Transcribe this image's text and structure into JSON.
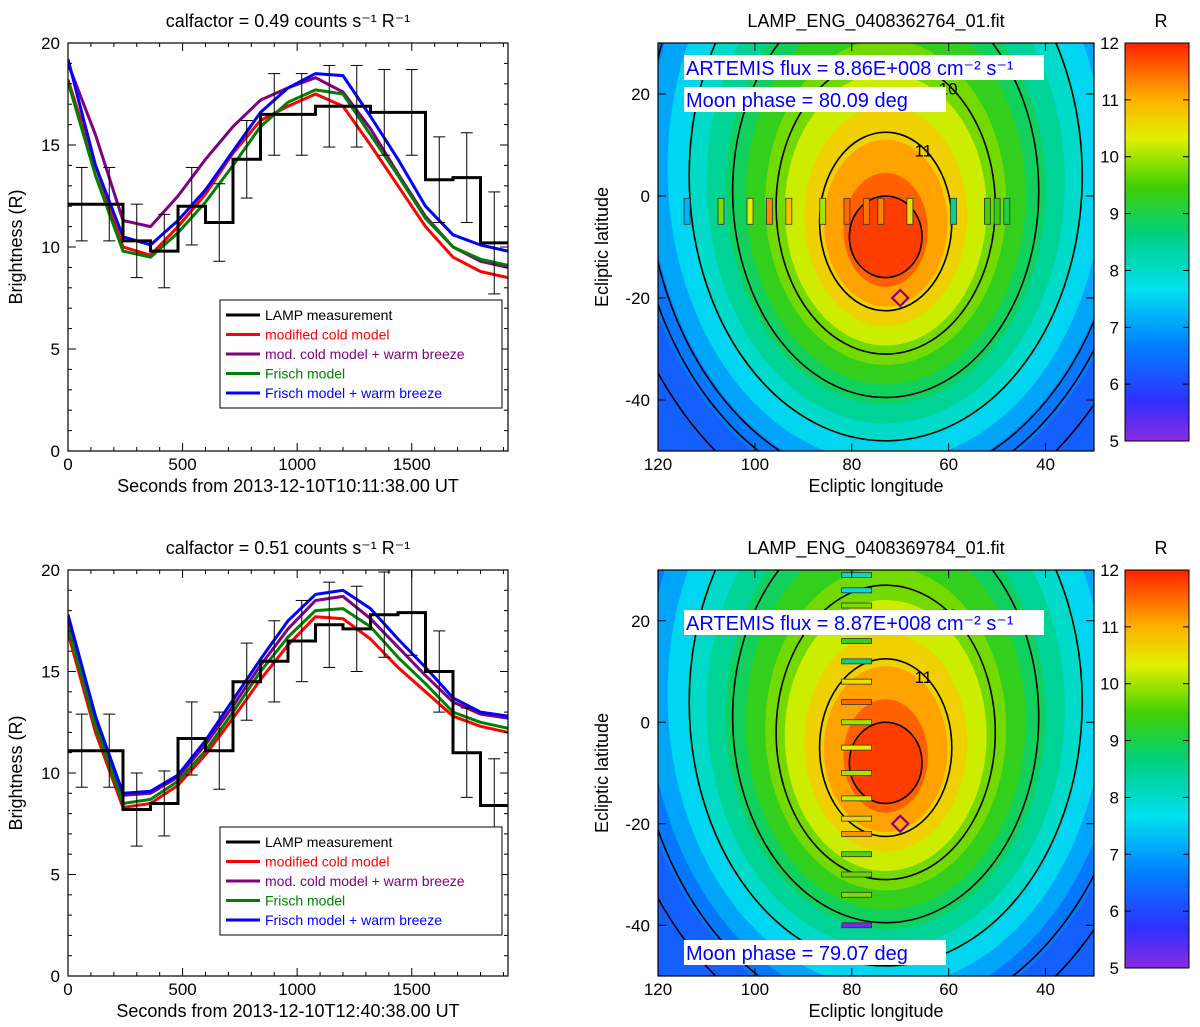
{
  "legend_labels": [
    "LAMP measurement",
    "modified cold model",
    "mod. cold model + warm breeze",
    "Frisch model",
    "Frisch model + warm breeze"
  ],
  "colors": {
    "LAMP measurement": "#000000",
    "modified cold model": "#ff0000",
    "mod. cold model + warm breeze": "#800080",
    "Frisch model": "#008000",
    "Frisch model + warm breeze": "#0000ff"
  },
  "chart_data": [
    {
      "type": "line",
      "panel": "top-left",
      "title": "calfactor = 0.49 counts s⁻¹ R⁻¹",
      "xlabel": "Seconds from 2013-12-10T10:11:38.00 UT",
      "ylabel": "Brightness (R)",
      "xlim": [
        0,
        1920
      ],
      "ylim": [
        0,
        20
      ],
      "xticks": [
        0,
        500,
        1000,
        1500
      ],
      "yticks": [
        0,
        5,
        10,
        15,
        20
      ],
      "legend_position": "lower-right",
      "measurement": {
        "name": "LAMP measurement",
        "edges": [
          0,
          120,
          240,
          360,
          480,
          600,
          720,
          840,
          960,
          1080,
          1200,
          1320,
          1440,
          1560,
          1680,
          1800,
          1920
        ],
        "values": [
          12.1,
          12.1,
          10.3,
          9.8,
          12.0,
          11.2,
          14.3,
          16.5,
          16.5,
          16.9,
          16.9,
          16.6,
          16.6,
          13.3,
          13.4,
          10.2
        ],
        "errors": [
          1.8,
          1.8,
          1.8,
          1.8,
          1.9,
          1.9,
          1.9,
          2.0,
          2.0,
          2.0,
          2.0,
          2.1,
          2.1,
          2.1,
          2.2,
          2.5
        ]
      },
      "x": [
        0,
        120,
        240,
        360,
        480,
        600,
        720,
        840,
        960,
        1080,
        1200,
        1320,
        1440,
        1560,
        1680,
        1800,
        1920
      ],
      "series": [
        {
          "name": "modified cold model",
          "values": [
            18.2,
            14.0,
            10.0,
            9.6,
            11.0,
            12.6,
            14.6,
            16.2,
            16.9,
            17.5,
            16.9,
            15.0,
            13.0,
            11.0,
            9.5,
            8.8,
            8.5
          ]
        },
        {
          "name": "mod. cold model + warm breeze",
          "values": [
            19.0,
            15.5,
            11.3,
            11.0,
            12.5,
            14.3,
            15.9,
            17.2,
            17.8,
            18.3,
            17.6,
            15.8,
            13.6,
            11.5,
            10.0,
            9.3,
            9.0
          ]
        },
        {
          "name": "Frisch model",
          "values": [
            18.1,
            13.5,
            9.8,
            9.5,
            10.7,
            12.2,
            14.0,
            15.9,
            17.1,
            17.7,
            17.5,
            15.5,
            13.5,
            11.4,
            10.0,
            9.4,
            9.1
          ]
        },
        {
          "name": "Frisch model + warm breeze",
          "values": [
            19.2,
            14.0,
            10.5,
            10.1,
            11.3,
            12.8,
            14.7,
            16.6,
            17.8,
            18.5,
            18.4,
            16.4,
            14.3,
            12.0,
            10.6,
            10.1,
            9.8
          ]
        }
      ]
    },
    {
      "type": "line",
      "panel": "bottom-left",
      "title": "calfactor = 0.51 counts s⁻¹ R⁻¹",
      "xlabel": "Seconds from 2013-12-10T12:40:38.00 UT",
      "ylabel": "Brightness (R)",
      "xlim": [
        0,
        1920
      ],
      "ylim": [
        0,
        20
      ],
      "xticks": [
        0,
        500,
        1000,
        1500
      ],
      "yticks": [
        0,
        5,
        10,
        15,
        20
      ],
      "legend_position": "lower-right",
      "measurement": {
        "name": "LAMP measurement",
        "edges": [
          0,
          120,
          240,
          360,
          480,
          600,
          720,
          840,
          960,
          1080,
          1200,
          1320,
          1440,
          1560,
          1680,
          1800,
          1920
        ],
        "values": [
          11.1,
          11.1,
          8.2,
          8.5,
          11.7,
          11.1,
          14.5,
          15.5,
          16.5,
          17.3,
          17.1,
          17.8,
          17.9,
          15.0,
          11.0,
          8.4
        ],
        "errors": [
          1.8,
          1.8,
          1.8,
          1.6,
          1.8,
          1.9,
          1.9,
          2.0,
          2.0,
          2.1,
          2.1,
          2.1,
          2.1,
          2.0,
          2.2,
          2.3
        ]
      },
      "x": [
        0,
        120,
        240,
        360,
        480,
        600,
        720,
        840,
        960,
        1080,
        1200,
        1320,
        1440,
        1560,
        1680,
        1800,
        1920
      ],
      "series": [
        {
          "name": "modified cold model",
          "values": [
            16.9,
            12.0,
            8.3,
            8.5,
            9.4,
            10.9,
            12.7,
            14.6,
            16.3,
            17.7,
            17.6,
            16.6,
            15.2,
            14.0,
            12.8,
            12.3,
            12.0
          ]
        },
        {
          "name": "mod. cold model + warm breeze",
          "values": [
            17.5,
            12.5,
            8.9,
            9.0,
            9.8,
            11.4,
            13.3,
            15.3,
            17.1,
            18.5,
            18.7,
            17.6,
            16.2,
            14.8,
            13.5,
            12.9,
            12.7
          ]
        },
        {
          "name": "Frisch model",
          "values": [
            17.2,
            12.3,
            8.5,
            8.7,
            9.6,
            11.1,
            13.0,
            15.0,
            16.7,
            18.0,
            18.1,
            17.2,
            15.7,
            14.4,
            13.0,
            12.5,
            12.2
          ]
        },
        {
          "name": "Frisch model + warm breeze",
          "values": [
            17.8,
            12.8,
            9.0,
            9.1,
            9.9,
            11.6,
            13.6,
            15.6,
            17.5,
            18.8,
            19.0,
            18.1,
            16.6,
            15.2,
            13.7,
            13.0,
            12.8
          ]
        }
      ]
    },
    {
      "type": "heatmap",
      "panel": "top-right",
      "title": "LAMP_ENG_0408362764_01.fit",
      "xlabel": "Ecliptic longitude",
      "ylabel": "Ecliptic latitude",
      "xlim": [
        120,
        30
      ],
      "ylim": [
        -50,
        30
      ],
      "xticks": [
        120,
        100,
        80,
        60,
        40
      ],
      "yticks": [
        20,
        0,
        -20,
        -40
      ],
      "peak": [
        73,
        -8
      ],
      "contour_levels": [
        7,
        8,
        9,
        10,
        11
      ],
      "moon_position": [
        70,
        -20
      ],
      "annotations": [
        "ARTEMIS flux =  8.86E+008 cm⁻² s⁻¹",
        "Moon phase =  80.09 deg"
      ],
      "colorbar": {
        "label": "R",
        "min": 5,
        "max": 12,
        "ticks": [
          5,
          6,
          7,
          8,
          9,
          10,
          11,
          12
        ]
      },
      "pointings": [
        {
          "lon": 114,
          "lat": -3,
          "value": 7.2
        },
        {
          "lon": 107,
          "lat": -3,
          "value": 9.8
        },
        {
          "lon": 101,
          "lat": -3,
          "value": 10.3
        },
        {
          "lon": 97,
          "lat": -3,
          "value": 11.3
        },
        {
          "lon": 93,
          "lat": -3,
          "value": 10.8
        },
        {
          "lon": 86,
          "lat": -3,
          "value": 10.0
        },
        {
          "lon": 81,
          "lat": -3,
          "value": 11.5
        },
        {
          "lon": 77,
          "lat": -3,
          "value": 11.4
        },
        {
          "lon": 74,
          "lat": -3,
          "value": 11.3
        },
        {
          "lon": 68,
          "lat": -3,
          "value": 10.5
        },
        {
          "lon": 59,
          "lat": -3,
          "value": 8.5
        },
        {
          "lon": 52,
          "lat": -3,
          "value": 9.5
        },
        {
          "lon": 50,
          "lat": -3,
          "value": 9.3
        },
        {
          "lon": 48,
          "lat": -3,
          "value": 9.0
        }
      ]
    },
    {
      "type": "heatmap",
      "panel": "bottom-right",
      "title": "LAMP_ENG_0408369784_01.fit",
      "xlabel": "Ecliptic longitude",
      "ylabel": "Ecliptic latitude",
      "xlim": [
        120,
        30
      ],
      "ylim": [
        -50,
        30
      ],
      "xticks": [
        120,
        100,
        80,
        60,
        40
      ],
      "yticks": [
        20,
        0,
        -20,
        -40
      ],
      "peak": [
        73,
        -8
      ],
      "contour_levels": [
        8,
        9,
        10,
        11
      ],
      "moon_position": [
        70,
        -20
      ],
      "annotations": [
        "ARTEMIS flux =  8.87E+008 cm⁻² s⁻¹",
        "Moon phase =  79.07 deg"
      ],
      "colorbar": {
        "label": "R",
        "min": 5,
        "max": 12,
        "ticks": [
          5,
          6,
          7,
          8,
          9,
          10,
          11,
          12
        ]
      },
      "pointings": [
        {
          "lon": 79,
          "lat": 29,
          "value": 8.0
        },
        {
          "lon": 79,
          "lat": 26,
          "value": 7.8
        },
        {
          "lon": 79,
          "lat": 23,
          "value": 9.8
        },
        {
          "lon": 79,
          "lat": 20,
          "value": 9.0
        },
        {
          "lon": 79,
          "lat": 16,
          "value": 9.3
        },
        {
          "lon": 79,
          "lat": 12,
          "value": 8.5
        },
        {
          "lon": 79,
          "lat": 8,
          "value": 10.5
        },
        {
          "lon": 79,
          "lat": 4,
          "value": 11.5
        },
        {
          "lon": 79,
          "lat": 0,
          "value": 10.0
        },
        {
          "lon": 79,
          "lat": -5,
          "value": 10.3
        },
        {
          "lon": 79,
          "lat": -10,
          "value": 10.0
        },
        {
          "lon": 79,
          "lat": -15,
          "value": 10.2
        },
        {
          "lon": 79,
          "lat": -19,
          "value": 10.6
        },
        {
          "lon": 79,
          "lat": -22,
          "value": 11.2
        },
        {
          "lon": 79,
          "lat": -26,
          "value": 9.6
        },
        {
          "lon": 79,
          "lat": -30,
          "value": 9.7
        },
        {
          "lon": 79,
          "lat": -34,
          "value": 9.8
        },
        {
          "lon": 79,
          "lat": -40,
          "value": 5.2
        }
      ]
    }
  ]
}
